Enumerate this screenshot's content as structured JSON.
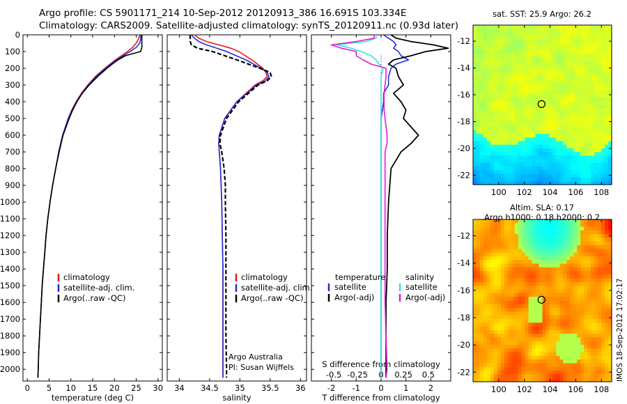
{
  "header": {
    "title_line1": "Argo profile: CS 5901171_214 10-Sep-2012 20120913_386 16.691S 103.334E",
    "title_line2": "Climatology: CARS2009. Satellite-adjusted climatology: synTS_20120911.nc (0.93d later)"
  },
  "colors": {
    "climatology": "#e8141c",
    "satellite": "#1f2fd8",
    "argo": "#000000",
    "sal_satellite": "#33e0e6",
    "sal_argo": "#e21ad6"
  },
  "side_text": "IMOS 18-Sep-2012 17:02:17",
  "chart_data": [
    {
      "id": "temperature",
      "type": "line",
      "xlabel": "temperature (deg C)",
      "xlim": [
        -1,
        31
      ],
      "xticks": [
        0,
        5,
        10,
        15,
        20,
        25,
        30
      ],
      "ylim": [
        2070,
        0
      ],
      "yticks": [
        0,
        100,
        200,
        300,
        400,
        500,
        600,
        700,
        800,
        900,
        1000,
        1100,
        1200,
        1300,
        1400,
        1500,
        1600,
        1700,
        1800,
        1900,
        2000
      ],
      "legend": [
        "climatology",
        "satellite-adj. clim.",
        "Argo(..raw -QC)"
      ],
      "depth": [
        0,
        25,
        50,
        75,
        100,
        125,
        150,
        175,
        200,
        250,
        300,
        350,
        400,
        450,
        500,
        600,
        700,
        800,
        900,
        1000,
        1100,
        1200,
        1300,
        1400,
        1500,
        1600,
        1700,
        1800,
        1900,
        2000,
        2050
      ],
      "series": [
        {
          "name": "climatology",
          "values": [
            25.9,
            25.5,
            25.0,
            24.2,
            23.0,
            21.6,
            20.2,
            19.0,
            17.8,
            15.6,
            13.9,
            12.4,
            11.2,
            10.2,
            9.4,
            8.1,
            7.2,
            6.5,
            5.8,
            5.2,
            4.7,
            4.3,
            4.0,
            3.7,
            3.4,
            3.2,
            3.0,
            2.8,
            2.6,
            2.5,
            2.4
          ]
        },
        {
          "name": "satellite-adj. clim.",
          "values": [
            26.1,
            26.0,
            25.8,
            25.0,
            23.6,
            22.0,
            20.5,
            19.2,
            18.0,
            15.8,
            14.0,
            12.5,
            11.3,
            10.3,
            9.4,
            8.1,
            7.2,
            6.5,
            5.8,
            5.2,
            4.7,
            4.3,
            4.0,
            3.7,
            3.4,
            3.2,
            3.0,
            2.8,
            2.6,
            2.5,
            2.4
          ]
        },
        {
          "name": "Argo(..raw -QC)",
          "values": [
            26.3,
            26.3,
            26.3,
            26.3,
            26.0,
            22.5,
            20.8,
            19.5,
            18.3,
            16.1,
            14.2,
            12.6,
            11.4,
            10.4,
            9.6,
            8.2,
            7.3,
            6.5,
            5.8,
            5.2,
            4.7,
            4.3,
            4.0,
            3.7,
            3.4,
            3.2,
            3.0,
            2.8,
            2.6,
            2.5,
            2.4
          ]
        }
      ]
    },
    {
      "id": "salinity",
      "type": "line",
      "xlabel": "salinity",
      "xlim": [
        33.8,
        36.1
      ],
      "xticks": [
        34,
        34.5,
        35,
        35.5,
        36
      ],
      "ylim": [
        2070,
        0
      ],
      "legend": [
        "climatology",
        "satellite-adj. clim.",
        "Argo(..raw -QC)"
      ],
      "annotation": [
        "Argo Australia",
        "PI: Susan Wijffels"
      ],
      "depth": [
        0,
        20,
        40,
        60,
        80,
        100,
        150,
        200,
        225,
        250,
        275,
        300,
        400,
        500,
        600,
        650,
        700,
        800,
        900,
        1000,
        1200,
        1400,
        1600,
        1800,
        2000,
        2050
      ],
      "series": [
        {
          "name": "climatology",
          "values": [
            34.25,
            34.32,
            34.45,
            34.65,
            34.85,
            34.98,
            35.2,
            35.38,
            35.43,
            35.45,
            35.38,
            35.25,
            34.95,
            34.75,
            34.66,
            34.65,
            34.66,
            34.68,
            34.69,
            34.7,
            34.71,
            34.72,
            34.72,
            34.72,
            34.72,
            34.72
          ]
        },
        {
          "name": "satellite-adj. clim.",
          "values": [
            34.2,
            34.25,
            34.32,
            34.45,
            34.62,
            34.78,
            35.1,
            35.35,
            35.45,
            35.48,
            35.42,
            35.28,
            34.95,
            34.75,
            34.66,
            34.65,
            34.66,
            34.68,
            34.69,
            34.7,
            34.71,
            34.72,
            34.72,
            34.72,
            34.72,
            34.72
          ]
        },
        {
          "name": "Argo(..raw -QC)",
          "values": [
            34.18,
            34.18,
            34.18,
            34.2,
            34.3,
            34.55,
            34.95,
            35.33,
            35.5,
            35.52,
            35.45,
            35.3,
            34.98,
            34.78,
            34.68,
            34.67,
            34.7,
            34.74,
            34.76,
            34.76,
            34.77,
            34.77,
            34.77,
            34.77,
            34.78,
            34.78
          ]
        }
      ]
    },
    {
      "id": "differences",
      "type": "line",
      "xlabel": "T difference from climatology",
      "xlim": [
        -2.8,
        2.8
      ],
      "xticks": [
        -2,
        -1,
        0,
        1,
        2
      ],
      "top_axis_label": "S difference from climatology",
      "top_xticks": [
        "-0.5",
        "-0.25",
        "0",
        "0.25",
        "0.5"
      ],
      "ylim": [
        2070,
        0
      ],
      "legend_temperature": [
        "temperature",
        "satellite",
        "Argo(-adj)"
      ],
      "legend_salinity": [
        "salinity",
        "satellite",
        "Argo(-adj)"
      ],
      "depth": [
        0,
        20,
        40,
        60,
        80,
        100,
        125,
        150,
        175,
        200,
        250,
        300,
        350,
        400,
        450,
        500,
        550,
        600,
        650,
        700,
        800,
        1000,
        1200,
        1400,
        1600,
        1800,
        2000,
        2050
      ],
      "series": [
        {
          "name": "temperature satellite",
          "values": [
            0.1,
            0.3,
            0.5,
            0.6,
            0.5,
            0.7,
            0.8,
            1.1,
            0.6,
            0.4,
            0.3,
            0.3,
            0.1,
            0.1,
            0.05,
            0,
            0,
            0,
            0,
            0,
            0,
            0,
            0,
            0,
            0,
            0,
            0,
            0
          ]
        },
        {
          "name": "temperature Argo(-adj)",
          "values": [
            0.4,
            0.6,
            1.2,
            2.1,
            2.7,
            1.8,
            1.2,
            0.5,
            0.3,
            0.6,
            0.7,
            0.9,
            0.5,
            0.8,
            1.0,
            0.9,
            1.2,
            1.5,
            1.2,
            0.8,
            0.4,
            0.3,
            0.25,
            0.25,
            0.2,
            0.2,
            0.2,
            0.2
          ]
        },
        {
          "name": "salinity satellite",
          "values": [
            -0.05,
            -0.05,
            -0.15,
            -0.45,
            -0.3,
            -0.2,
            -0.1,
            -0.05,
            -0.02,
            0.02,
            0.0,
            0.0,
            0.0,
            0.0,
            0.0,
            0.0,
            0.0,
            0.0,
            0.0,
            0.0,
            0.0,
            0.0,
            0.0,
            0.0,
            0.0,
            0.0,
            0.0,
            0.0
          ]
        },
        {
          "name": "salinity Argo(-adj)",
          "values": [
            -0.07,
            -0.07,
            -0.25,
            -0.5,
            -0.4,
            -0.25,
            -0.25,
            -0.18,
            -0.1,
            0.05,
            0.05,
            0.04,
            0.03,
            0.03,
            0.03,
            0.04,
            0.05,
            0.06,
            0.06,
            0.04,
            0.04,
            0.04,
            0.04,
            0.04,
            0.04,
            0.05,
            0.06,
            0.05
          ]
        }
      ]
    },
    {
      "id": "sst_map",
      "type": "heatmap",
      "title": "sat. SST: 25.9 Argo: 26.2",
      "xlim": [
        98,
        108.8
      ],
      "ylim": [
        -22.7,
        -10.8
      ],
      "xticks": [
        100,
        102,
        104,
        106,
        108
      ],
      "yticks": [
        -12,
        -14,
        -16,
        -18,
        -20,
        -22
      ],
      "marker": {
        "lon": 103.334,
        "lat": -16.691
      }
    },
    {
      "id": "sla_map",
      "type": "heatmap",
      "title_line1": "Altim. SLA: 0.17",
      "title_line2": "Argo h1000: 0.18 h2000: 0.2",
      "xlim": [
        98,
        108.8
      ],
      "ylim": [
        -22.7,
        -10.8
      ],
      "xticks": [
        100,
        102,
        104,
        106,
        108
      ],
      "yticks": [
        -12,
        -14,
        -16,
        -18,
        -20,
        -22
      ],
      "marker": {
        "lon": 103.334,
        "lat": -16.691
      }
    }
  ]
}
